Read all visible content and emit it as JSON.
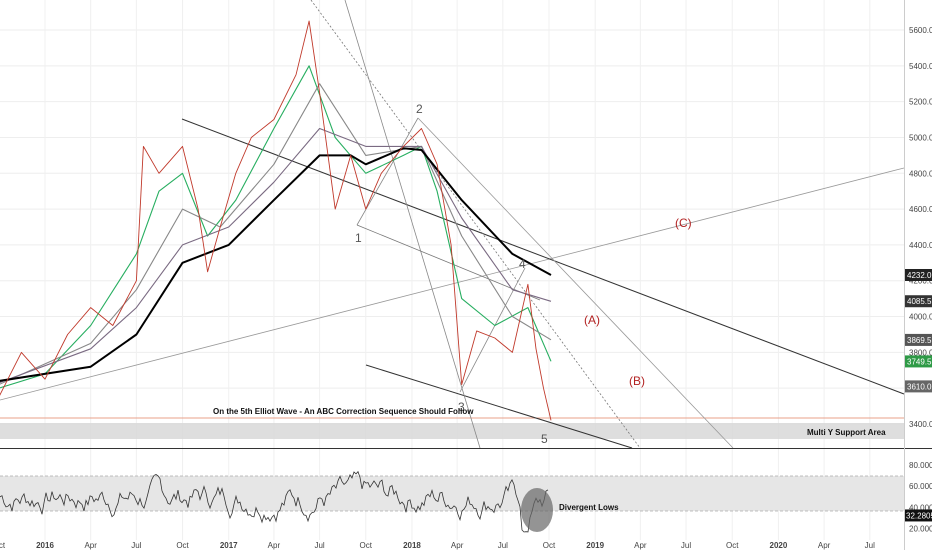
{
  "chart_data": [
    {
      "type": "line",
      "panel": "price",
      "y_axis": {
        "ticks": [
          3400.0,
          3600.0,
          3800.0,
          4000.0,
          4200.0,
          4400.0,
          4600.0,
          4800.0,
          5000.0,
          5200.0,
          5400.0,
          5600.0
        ],
        "tick_labels": [
          "3400.0",
          "3600.0",
          "3800.0",
          "4000.0",
          "4200.0",
          "4400.0",
          "4600.0",
          "4800.0",
          "5000.0",
          "5200.0",
          "5400.0",
          "5600.0"
        ],
        "ylim": [
          3170,
          5800
        ],
        "side": "right",
        "grid": true
      },
      "x_axis": {
        "tick_labels": [
          "Oct",
          "2016",
          "Apr",
          "Jul",
          "Oct",
          "2017",
          "Apr",
          "Jul",
          "Oct",
          "2018",
          "Apr",
          "Jul",
          "Oct",
          "2019",
          "Apr",
          "Jul",
          "Oct",
          "2020",
          "Apr",
          "Jul"
        ],
        "grid": true
      },
      "price_tags": [
        {
          "label": "4232.0",
          "value": 4232,
          "color": "#222222"
        },
        {
          "label": "4085.5",
          "value": 4085.5,
          "color": "#333333"
        },
        {
          "label": "3869.5",
          "value": 3869.5,
          "color": "#555555"
        },
        {
          "label": "3749.5",
          "value": 3749.5,
          "color": "#2e9a46"
        },
        {
          "label": "3610.0",
          "value": 3610,
          "color": "#666666"
        }
      ],
      "series": [
        {
          "style": "price",
          "color": "#c0392b",
          "x": [
            "2015-10-01",
            "2015-11-15",
            "2016-01-01",
            "2016-02-15",
            "2016-04-01",
            "2016-05-15",
            "2016-07-01",
            "2016-07-15",
            "2016-08-15",
            "2016-10-01",
            "2016-11-01",
            "2016-11-20",
            "2016-12-15",
            "2017-01-15",
            "2017-02-15",
            "2017-04-01",
            "2017-05-15",
            "2017-06-10",
            "2017-07-01",
            "2017-08-01",
            "2017-09-01",
            "2017-10-01",
            "2017-11-01",
            "2017-12-15",
            "2018-01-20",
            "2018-02-20",
            "2018-03-20",
            "2018-04-10",
            "2018-05-10",
            "2018-06-15",
            "2018-07-20",
            "2018-08-20",
            "2018-09-05",
            "2018-09-20",
            "2018-10-05"
          ],
          "values": [
            3550,
            3800,
            3650,
            3900,
            4050,
            3950,
            4200,
            4950,
            4800,
            4950,
            4600,
            4250,
            4500,
            4800,
            5000,
            5100,
            5350,
            5650,
            5250,
            4600,
            4900,
            4600,
            4800,
            4950,
            5050,
            4850,
            4400,
            3620,
            3920,
            3880,
            3800,
            4180,
            3820,
            3600,
            3420
          ]
        },
        {
          "style": "moving-average",
          "color": "#27ae60",
          "x": [
            "2015-10-01",
            "2016-01-01",
            "2016-04-01",
            "2016-07-01",
            "2016-08-15",
            "2016-10-01",
            "2016-11-20",
            "2017-01-15",
            "2017-04-01",
            "2017-06-10",
            "2017-08-01",
            "2017-10-01",
            "2017-12-15",
            "2018-01-20",
            "2018-02-20",
            "2018-04-10",
            "2018-06-15",
            "2018-08-20",
            "2018-10-05"
          ],
          "values": [
            3600,
            3680,
            3950,
            4350,
            4700,
            4800,
            4450,
            4650,
            5050,
            5400,
            5000,
            4800,
            4900,
            4950,
            4700,
            4100,
            3950,
            4050,
            3750
          ]
        },
        {
          "style": "moving-average",
          "color": "#888888",
          "x": [
            "2015-10-01",
            "2016-04-01",
            "2016-07-01",
            "2016-10-01",
            "2016-12-15",
            "2017-04-01",
            "2017-07-01",
            "2017-10-01",
            "2018-01-20",
            "2018-04-10",
            "2018-07-20",
            "2018-10-05"
          ],
          "values": [
            3620,
            3850,
            4150,
            4600,
            4500,
            4850,
            5300,
            4900,
            4950,
            4450,
            4000,
            3870
          ]
        },
        {
          "style": "moving-average",
          "color": "#7a6a82",
          "x": [
            "2015-10-01",
            "2016-04-01",
            "2016-07-01",
            "2016-10-01",
            "2017-01-01",
            "2017-04-01",
            "2017-07-01",
            "2017-10-01",
            "2018-01-20",
            "2018-04-10",
            "2018-07-20",
            "2018-10-05"
          ],
          "values": [
            3630,
            3820,
            4050,
            4400,
            4500,
            4750,
            5050,
            4950,
            4950,
            4550,
            4150,
            4085
          ]
        },
        {
          "style": "moving-average",
          "color": "#000000",
          "x": [
            "2015-10-01",
            "2016-04-01",
            "2016-07-01",
            "2016-10-01",
            "2017-01-01",
            "2017-04-01",
            "2017-07-01",
            "2017-09-01",
            "2017-10-01",
            "2017-12-15",
            "2018-01-20",
            "2018-04-10",
            "2018-07-20",
            "2018-10-05"
          ],
          "values": [
            3640,
            3720,
            3900,
            4300,
            4400,
            4650,
            4900,
            4900,
            4850,
            4940,
            4930,
            4650,
            4350,
            4232
          ]
        }
      ],
      "wave_labels": [
        "1",
        "2",
        "3",
        "4",
        "5"
      ],
      "abc_labels": [
        "(A)",
        "(B)",
        "(C)"
      ],
      "annotations": {
        "main": "On the 5th Elliot Wave - An ABC Correction Sequence Should Follow",
        "support": "Multi Y Support Area"
      }
    },
    {
      "type": "line",
      "panel": "oscillator",
      "y_axis": {
        "ticks": [
          20,
          40,
          60,
          80
        ],
        "tick_labels": [
          "20.0000",
          "40.0000",
          "60.0000",
          "80.0000"
        ],
        "ylim": [
          10,
          90
        ],
        "band": [
          30,
          70
        ],
        "side": "right"
      },
      "current_tag": {
        "label": "32.2805",
        "value": 32.2805,
        "color": "#111111"
      },
      "annotation": "Divergent Lows"
    }
  ]
}
